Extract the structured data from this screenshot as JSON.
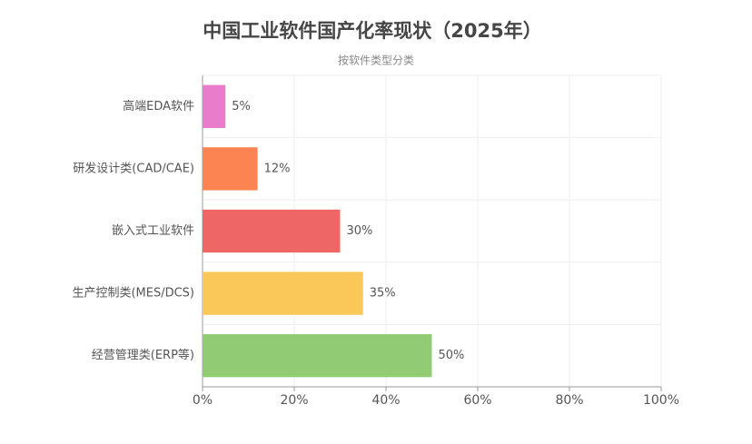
{
  "chart_data": {
    "type": "bar",
    "orientation": "horizontal",
    "title": "中国工业软件国产化率现状（2025年）",
    "subtitle": "按软件类型分类",
    "categories": [
      "高端EDA软件",
      "研发设计类(CAD/CAE)",
      "嵌入式工业软件",
      "生产控制类(MES/DCS)",
      "经营管理类(ERP等)"
    ],
    "values": [
      5,
      12,
      30,
      35,
      50
    ],
    "value_labels": [
      "5%",
      "12%",
      "30%",
      "35%",
      "50%"
    ],
    "colors": [
      "#e97ccb",
      "#fc8452",
      "#ee6666",
      "#fac858",
      "#91cc75"
    ],
    "xlim": [
      0,
      100
    ],
    "xticks": [
      {
        "value": 0,
        "label": "0%"
      },
      {
        "value": 20,
        "label": "20%"
      },
      {
        "value": 40,
        "label": "40%"
      },
      {
        "value": 60,
        "label": "60%"
      },
      {
        "value": 80,
        "label": "80%"
      },
      {
        "value": 100,
        "label": "100%"
      }
    ],
    "grid": true
  }
}
